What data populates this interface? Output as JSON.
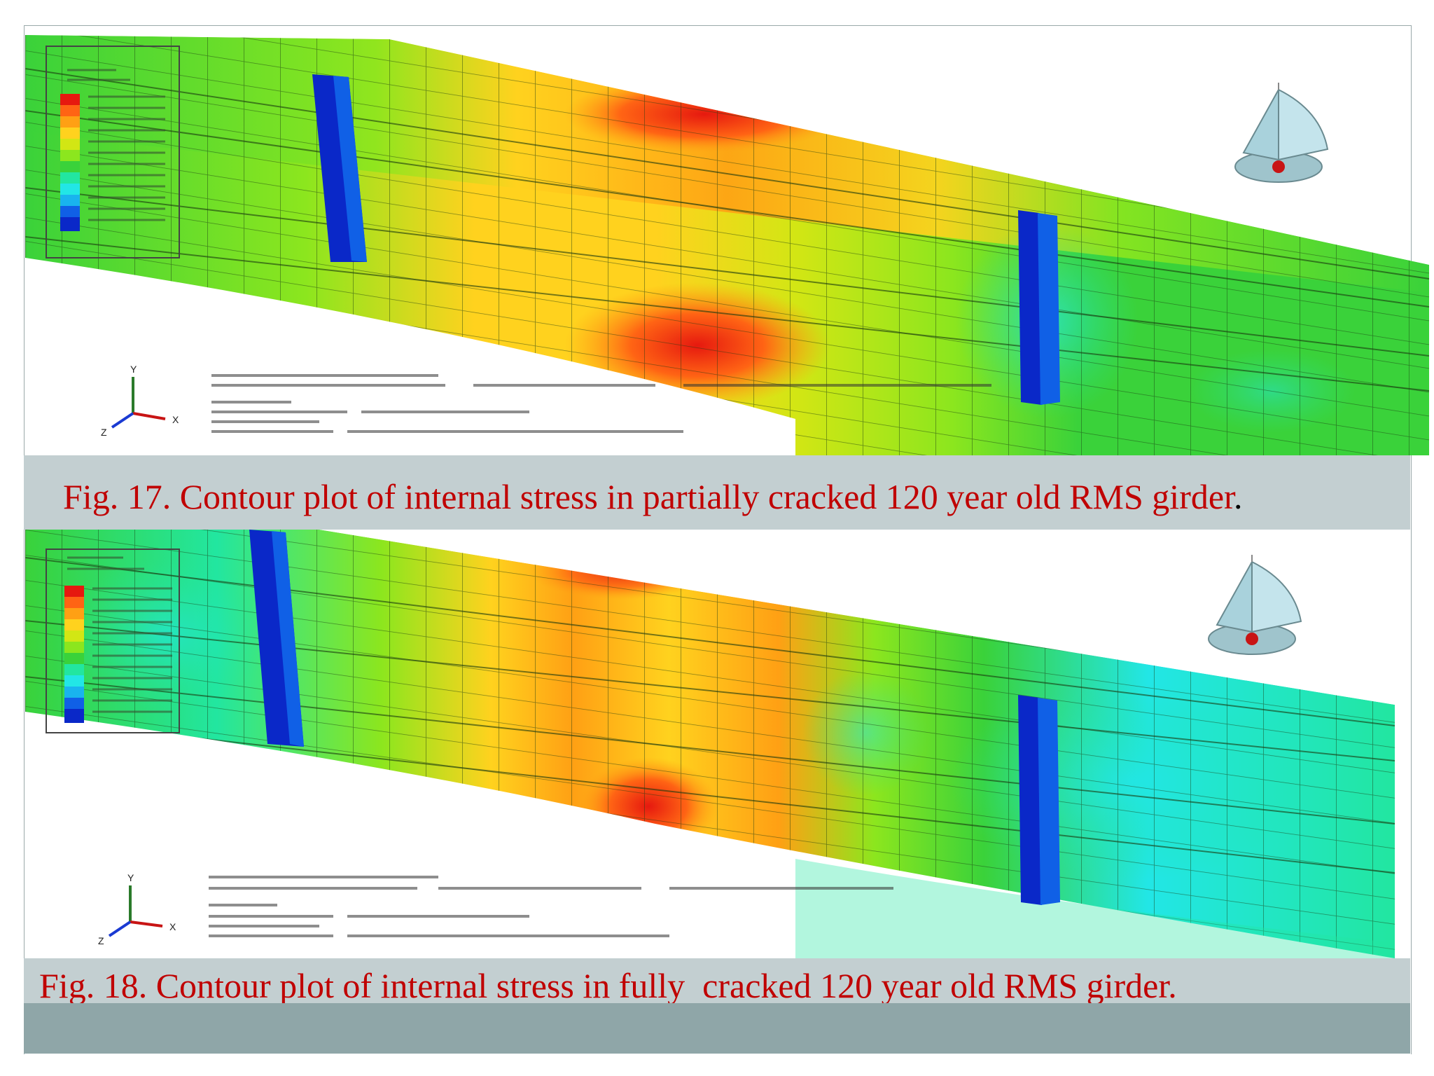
{
  "figures": [
    {
      "id": "fig17",
      "caption_main": "Fig. 17. Contour plot of internal stress in partially cracked 120 year old RMS girder",
      "caption_end": "."
    },
    {
      "id": "fig18",
      "caption_main": "Fig. 18. Contour plot of internal stress in fully  cracked 120 year old RMS girder.",
      "caption_end": ""
    }
  ],
  "colors": {
    "caption_text": "#c00000",
    "caption_band": "#c3cfd1",
    "bottom_bar": "#8fa6a8",
    "contour_scale": [
      "#0a28c8",
      "#1060e6",
      "#19b4ee",
      "#22e6e6",
      "#22e6a0",
      "#3ad23a",
      "#8ce61e",
      "#d2e614",
      "#ffd21e",
      "#ffa014",
      "#ff6414",
      "#e6190f"
    ]
  },
  "icons": [
    "axis-triad-icon",
    "view-orientation-icon"
  ]
}
